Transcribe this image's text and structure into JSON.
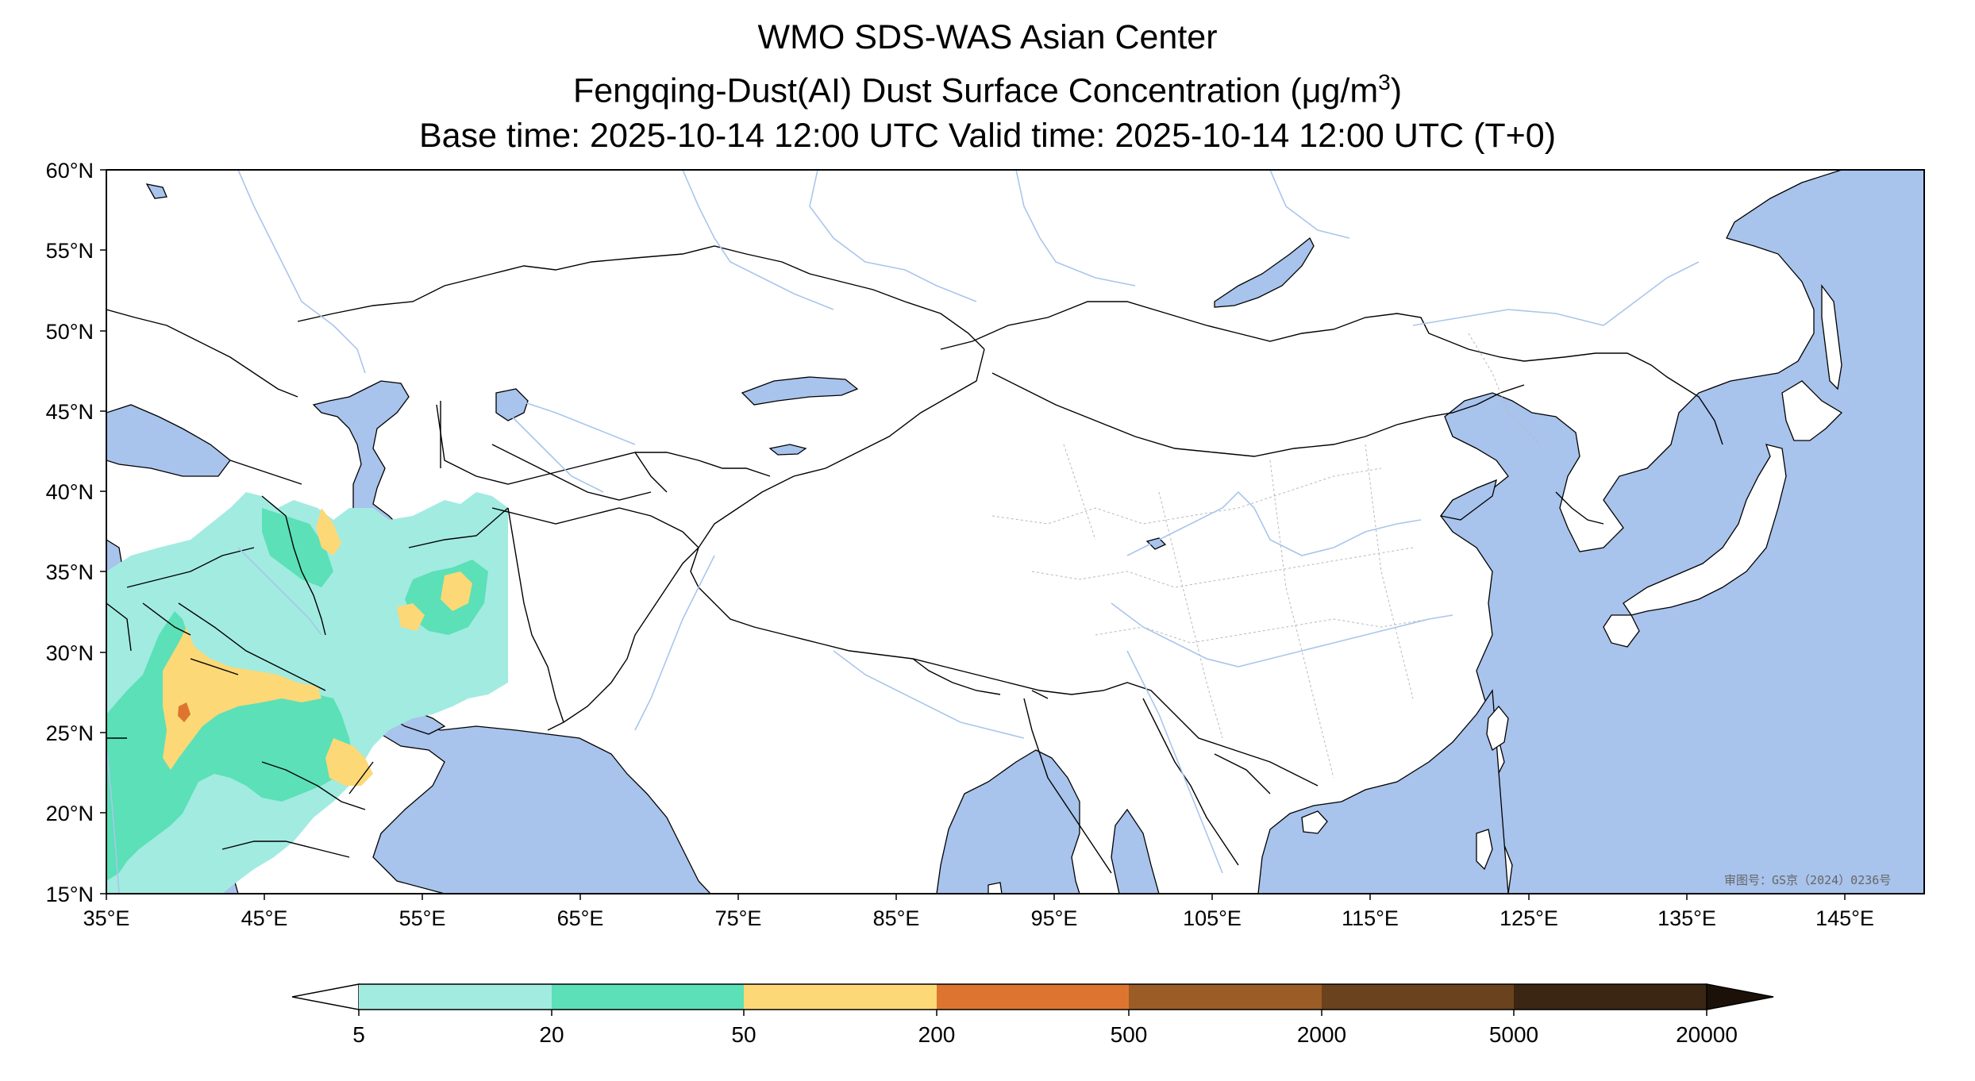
{
  "title": {
    "line1": "WMO SDS-WAS Asian Center",
    "line2_prefix": "Fengqing-Dust(AI) Dust Surface Concentration (",
    "line2_unit_mu": "μ",
    "line2_unit_rest": "g/m",
    "line2_unit_exp": "3",
    "line2_suffix": ")",
    "line3": "Base time: 2025-10-14 12:00 UTC Valid time: 2025-10-14 12:00 UTC (T+0)"
  },
  "map": {
    "lon_range": [
      35,
      150
    ],
    "lat_range": [
      15,
      60
    ],
    "lat_ticks": [
      "60°N",
      "55°N",
      "50°N",
      "45°N",
      "40°N",
      "35°N",
      "30°N",
      "25°N",
      "20°N",
      "15°N"
    ],
    "lon_ticks": [
      "35°E",
      "45°E",
      "55°E",
      "65°E",
      "75°E",
      "85°E",
      "95°E",
      "105°E",
      "115°E",
      "125°E",
      "135°E",
      "145°E"
    ],
    "colors": {
      "ocean": "#a8c3ec",
      "land": "#ffffff",
      "border": "#000000",
      "river": "#a9c6eb",
      "province": "#b8b8b8"
    },
    "approval_note": "审图号：GS京（2024）0236号"
  },
  "colorbar": {
    "ticks": [
      "5",
      "20",
      "50",
      "200",
      "500",
      "2000",
      "5000",
      "20000"
    ],
    "colors": [
      "#a2ebe0",
      "#5be0b8",
      "#fcd877",
      "#dd7531",
      "#9c5c25",
      "#6b421e",
      "#3b2614"
    ],
    "under_color": "#ffffff",
    "over_color": "#1c1109"
  }
}
